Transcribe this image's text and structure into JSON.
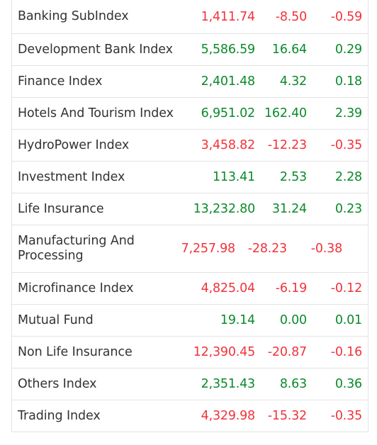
{
  "rows": [
    {
      "name": "Banking SubIndex",
      "ltp": "1,411.74",
      "change": "-8.50",
      "pct": "-0.59",
      "dir": "neg"
    },
    {
      "name": "Development Bank Index",
      "ltp": "5,586.59",
      "change": "16.64",
      "pct": "0.29",
      "dir": "pos"
    },
    {
      "name": "Finance Index",
      "ltp": "2,401.48",
      "change": "4.32",
      "pct": "0.18",
      "dir": "pos"
    },
    {
      "name": "Hotels And Tourism Index",
      "ltp": "6,951.02",
      "change": "162.40",
      "pct": "2.39",
      "dir": "pos"
    },
    {
      "name": "HydroPower Index",
      "ltp": "3,458.82",
      "change": "-12.23",
      "pct": "-0.35",
      "dir": "neg"
    },
    {
      "name": "Investment Index",
      "ltp": "113.41",
      "change": "2.53",
      "pct": "2.28",
      "dir": "pos"
    },
    {
      "name": "Life Insurance",
      "ltp": "13,232.80",
      "change": "31.24",
      "pct": "0.23",
      "dir": "pos"
    },
    {
      "name": "Manufacturing And Processing",
      "ltp": "7,257.98",
      "change": "-28.23",
      "pct": "-0.38",
      "dir": "neg"
    },
    {
      "name": "Microfinance Index",
      "ltp": "4,825.04",
      "change": "-6.19",
      "pct": "-0.12",
      "dir": "neg"
    },
    {
      "name": "Mutual Fund",
      "ltp": "19.14",
      "change": "0.00",
      "pct": "0.01",
      "dir": "pos"
    },
    {
      "name": "Non Life Insurance",
      "ltp": "12,390.45",
      "change": "-20.87",
      "pct": "-0.16",
      "dir": "neg"
    },
    {
      "name": "Others Index",
      "ltp": "2,351.43",
      "change": "8.63",
      "pct": "0.36",
      "dir": "pos"
    },
    {
      "name": "Trading Index",
      "ltp": "4,329.98",
      "change": "-15.32",
      "pct": "-0.35",
      "dir": "neg"
    }
  ],
  "colors": {
    "positive": "#0a8a2a",
    "negative": "#f2323a",
    "text": "#333333",
    "border": "#e3e3e3"
  }
}
